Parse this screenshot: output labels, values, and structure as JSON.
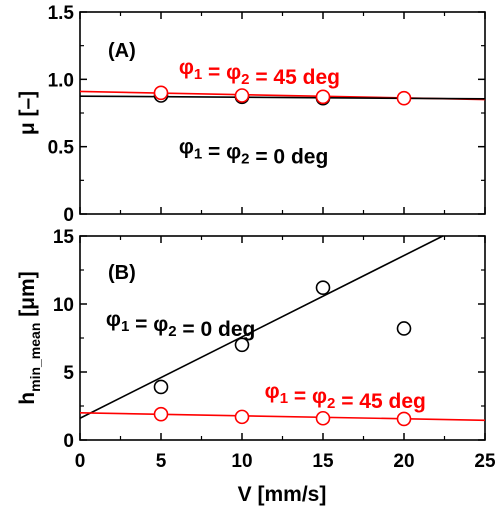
{
  "chart_data": [
    {
      "panel": "(A)",
      "type": "scatter",
      "xlabel": "",
      "ylabel": "μ [–]",
      "xlim": [
        0,
        25
      ],
      "ylim": [
        0,
        1.5
      ],
      "yticks": [
        "0",
        "0.5",
        "1.0",
        "1.5"
      ],
      "xticks": [],
      "series": [
        {
          "name": "φ1 = φ2 = 45 deg",
          "color": "#ff0000",
          "marker": "open-circle",
          "x": [
            5,
            10,
            15,
            20
          ],
          "y": [
            0.9,
            0.88,
            0.87,
            0.86
          ],
          "fit": [
            [
              0,
              0.91
            ],
            [
              25,
              0.85
            ]
          ]
        },
        {
          "name": "φ1 = φ2 = 0 deg",
          "color": "#000000",
          "marker": "open-circle",
          "x": [
            5,
            10,
            15
          ],
          "y": [
            0.88,
            0.87,
            0.86
          ],
          "fit": [
            [
              0,
              0.875
            ],
            [
              25,
              0.855
            ]
          ]
        }
      ],
      "annotations": [
        {
          "text": "φ1 = φ2 = 45 deg",
          "color": "#ff0000",
          "x": 6.1,
          "y": 1.04
        },
        {
          "text": "φ1 = φ2 = 0 deg",
          "color": "#000000",
          "x": 6.1,
          "y": 0.45
        }
      ]
    },
    {
      "panel": "(B)",
      "type": "scatter",
      "xlabel": "V [mm/s]",
      "ylabel": "hmin_mean [μm]",
      "xlim": [
        0,
        25
      ],
      "ylim": [
        0,
        15
      ],
      "yticks": [
        "0",
        "5",
        "10",
        "15"
      ],
      "xticks": [
        "0",
        "5",
        "10",
        "15",
        "20",
        "25"
      ],
      "series": [
        {
          "name": "φ1 = φ2 = 0 deg",
          "color": "#000000",
          "marker": "open-circle",
          "x": [
            5,
            10,
            15,
            20
          ],
          "y": [
            3.9,
            7.0,
            11.2,
            8.2
          ],
          "fit": [
            [
              0,
              1.6
            ],
            [
              22.4,
              15
            ]
          ]
        },
        {
          "name": "φ1 = φ2 = 45 deg",
          "color": "#ff0000",
          "marker": "open-circle",
          "x": [
            5,
            10,
            15,
            20
          ],
          "y": [
            1.9,
            1.7,
            1.6,
            1.55
          ],
          "fit": [
            [
              0,
              2.0
            ],
            [
              25,
              1.45
            ]
          ]
        }
      ],
      "annotations": [
        {
          "text": "φ1 = φ2 = 0 deg",
          "color": "#000000",
          "x": 1.6,
          "y": 8.4
        },
        {
          "text": "φ1 = φ2 = 45 deg",
          "color": "#ff0000",
          "x": 11.4,
          "y": 3.1
        }
      ]
    }
  ]
}
